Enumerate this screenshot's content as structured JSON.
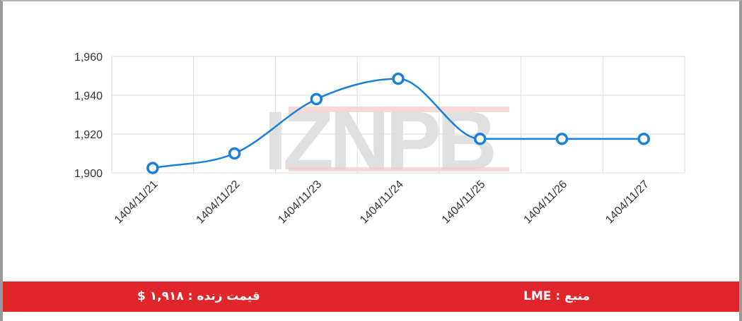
{
  "chart_data": {
    "type": "line",
    "x": [
      "1404/11/21",
      "1404/11/22",
      "1404/11/23",
      "1404/11/24",
      "1404/11/25",
      "1404/11/26",
      "1404/11/27"
    ],
    "series": [
      {
        "values": [
          1902.5,
          1910,
          1938,
          1948.5,
          1917.5,
          1917.5,
          1917.5
        ]
      }
    ],
    "ylim": [
      1900,
      1960
    ],
    "yticks": [
      1900,
      1920,
      1940,
      1960
    ],
    "ytick_labels": [
      "1,900",
      "1,920",
      "1,940",
      "1,960"
    ],
    "grid": true,
    "line_color": "#1a7fd6",
    "watermark": "IZNPB"
  },
  "footer": {
    "live_price": "قیمت زنده : ۱,۹۱۸ $",
    "source": "منبع : LME",
    "background_color": "#e0262b"
  }
}
